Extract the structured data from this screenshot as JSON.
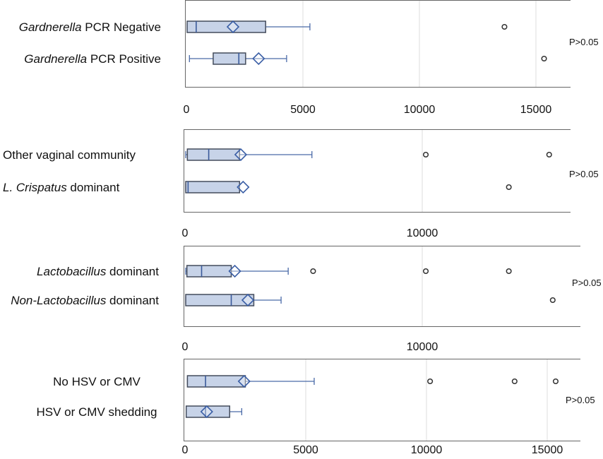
{
  "chart_data": [
    {
      "type": "boxplot",
      "orientation": "horizontal",
      "xlim": [
        0,
        16500
      ],
      "xticks": [
        0,
        5000,
        10000,
        15000
      ],
      "xtick_labels": [
        "0",
        "5000",
        "10000",
        "15000"
      ],
      "p_value": "P>0.05",
      "groups": [
        {
          "label_italic": "Gardnerella",
          "label_rest": " PCR Negative",
          "whisker_low": 30,
          "q1": 30,
          "median": 420,
          "q3": 3400,
          "whisker_high": 5300,
          "mean": 2000,
          "outliers": [
            13650
          ]
        },
        {
          "label_italic": "Gardnerella",
          "label_rest": " PCR Positive",
          "whisker_low": 130,
          "q1": 1150,
          "median": 2250,
          "q3": 2540,
          "whisker_high": 4300,
          "mean": 3100,
          "outliers": [
            15350
          ]
        }
      ]
    },
    {
      "type": "boxplot",
      "orientation": "horizontal",
      "xlim": [
        0,
        16500
      ],
      "xticks": [
        0,
        10000
      ],
      "xtick_labels": [
        "0",
        "10000"
      ],
      "p_value": "P>0.05",
      "groups": [
        {
          "label_italic": "",
          "label_rest": "Other vaginal community",
          "whisker_low": 30,
          "q1": 100,
          "median": 1000,
          "q3": 2300,
          "whisker_high": 5350,
          "mean": 2350,
          "outliers": [
            10150,
            15350
          ]
        },
        {
          "label_italic": "L. Crispatus",
          "label_rest": " dominant",
          "whisker_low": 30,
          "q1": 30,
          "median": 130,
          "q3": 2300,
          "whisker_high": 2300,
          "mean": 2450,
          "outliers": [
            13650
          ]
        }
      ]
    },
    {
      "type": "boxplot",
      "orientation": "horizontal",
      "xlim": [
        0,
        16500
      ],
      "xticks": [
        0,
        10000
      ],
      "xtick_labels": [
        "0",
        "10000"
      ],
      "p_value": "P>0.05",
      "groups": [
        {
          "label_italic": "Lactobacillus",
          "label_rest": " dominant",
          "whisker_low": 30,
          "q1": 80,
          "median": 700,
          "q3": 1950,
          "whisker_high": 4350,
          "mean": 2100,
          "outliers": [
            5400,
            10150,
            13650
          ]
        },
        {
          "label_italic": "Non-Lactobacillus",
          "label_rest": " dominant",
          "whisker_low": 30,
          "q1": 30,
          "median": 1950,
          "q3": 2900,
          "whisker_high": 4050,
          "mean": 2650,
          "outliers": [
            15500
          ]
        }
      ]
    },
    {
      "type": "boxplot",
      "orientation": "horizontal",
      "xlim": [
        0,
        16500
      ],
      "xticks": [
        0,
        5000,
        10000,
        15000
      ],
      "xtick_labels": [
        "0",
        "5000",
        "10000",
        "15000"
      ],
      "p_value": "P>0.05",
      "groups": [
        {
          "label_italic": "",
          "label_rest": "No HSV or CMV",
          "whisker_low": 100,
          "q1": 100,
          "median": 850,
          "q3": 2500,
          "whisker_high": 5350,
          "mean": 2450,
          "outliers": [
            10150,
            13650,
            15350
          ]
        },
        {
          "label_italic": "",
          "label_rest": "HSV or CMV shedding",
          "whisker_low": 50,
          "q1": 50,
          "median": 850,
          "q3": 1850,
          "whisker_high": 2350,
          "mean": 900,
          "outliers": []
        }
      ]
    }
  ],
  "colors": {
    "box_fill": "#c7d3e8",
    "box_stroke": "#444c5c",
    "whisker": "#4a6aa8",
    "median": "#3a5a9a",
    "mean_marker": "#3b5fa6",
    "outlier": "#333333",
    "grid": "#dddddd",
    "axis": "#666666"
  }
}
